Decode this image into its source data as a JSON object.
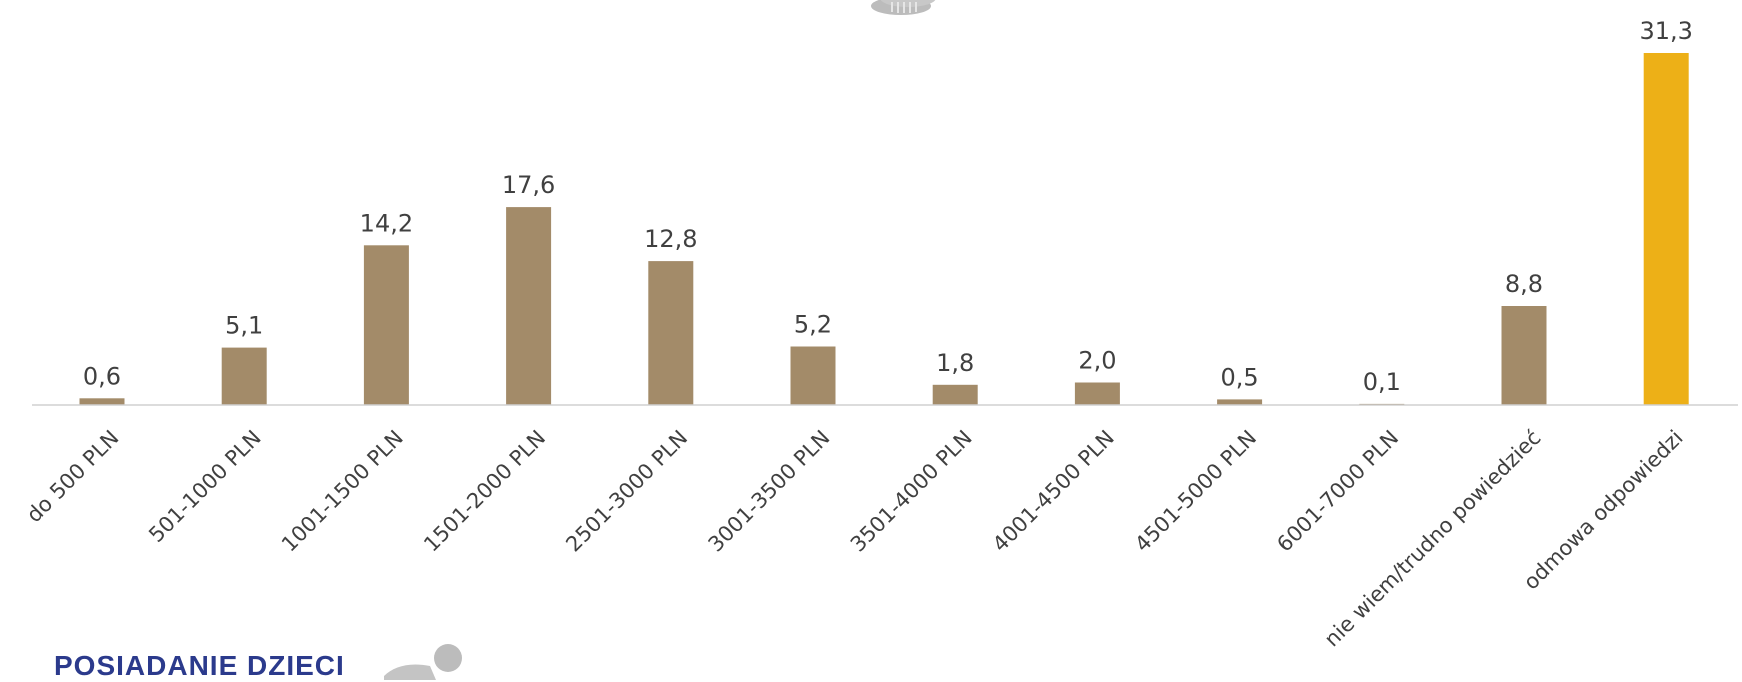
{
  "colors": {
    "bar": "#a38b69",
    "highlight_bar": "#edb017",
    "baseline": "#d0d0d0",
    "label_text": "#404040",
    "section_title": "#2b3a8c",
    "icon_gray": "#bcbcbc"
  },
  "icons": {
    "top": "coins-icon",
    "bottom": "person-icon"
  },
  "section": {
    "title": "POSIADANIE DZIECI"
  },
  "chart_data": {
    "type": "bar",
    "title": "",
    "xlabel": "",
    "ylabel": "",
    "categories": [
      "do 500 PLN",
      "501-1000 PLN",
      "1001-1500 PLN",
      "1501-2000 PLN",
      "2501-3000 PLN",
      "3001-3500 PLN",
      "3501-4000 PLN",
      "4001-4500 PLN",
      "4501-5000 PLN",
      "6001-7000 PLN",
      "nie wiem/trudno powiedzieć",
      "odmowa odpowiedzi"
    ],
    "values": [
      0.6,
      5.1,
      14.2,
      17.6,
      12.8,
      5.2,
      1.8,
      2.0,
      0.5,
      0.1,
      8.8,
      31.3
    ],
    "value_labels": [
      "0,6",
      "5,1",
      "14,2",
      "17,6",
      "12,8",
      "5,2",
      "1,8",
      "2,0",
      "0,5",
      "0,1",
      "8,8",
      "31,3"
    ],
    "highlight_index": 11,
    "ylim": [
      0,
      31.3
    ],
    "grid": false,
    "legend": false
  }
}
